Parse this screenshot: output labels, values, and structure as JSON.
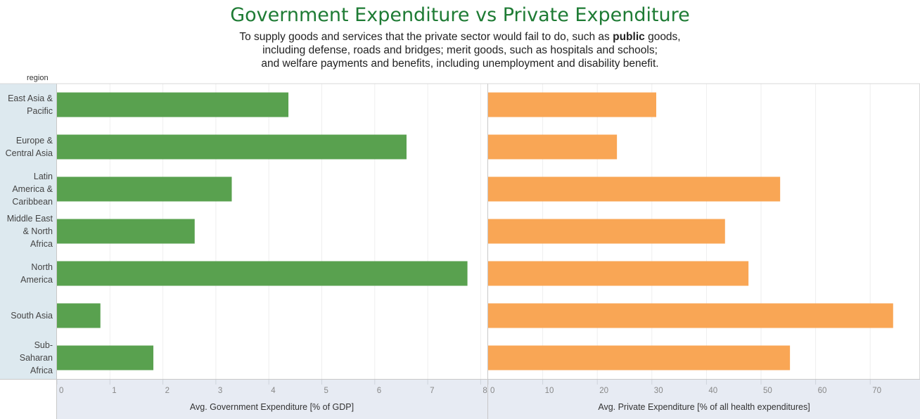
{
  "title": "Government Expenditure vs Private Expenditure",
  "subtitle": {
    "line1_before": "To supply goods and services that the private sector would fail to do, such as ",
    "line1_bold": "public",
    "line1_after": " goods,",
    "line2": "including defense, roads and bridges; merit goods, such as hospitals and schools;",
    "line3": "and welfare payments and benefits, including unemployment and disability benefit."
  },
  "region_header": "region",
  "colors": {
    "government": "#59a14f",
    "private": "#f9a655",
    "title": "#1e7b34"
  },
  "chart_data": [
    {
      "type": "bar",
      "orientation": "horizontal",
      "categories": [
        "East Asia & Pacific",
        "Europe & Central Asia",
        "Latin America & Caribbean",
        "Middle East & North Africa",
        "North America",
        "South Asia",
        "Sub-Saharan Africa"
      ],
      "values": [
        4.37,
        6.6,
        3.3,
        2.6,
        7.75,
        0.82,
        1.82
      ],
      "xlabel": "Avg. Government Expenditure [% of GDP]",
      "xlim": [
        0,
        8
      ],
      "ticks": [
        "0",
        "1",
        "2",
        "3",
        "4",
        "5",
        "6",
        "7",
        "8"
      ],
      "grid": true
    },
    {
      "type": "bar",
      "orientation": "horizontal",
      "categories": [
        "East Asia & Pacific",
        "Europe & Central Asia",
        "Latin America & Caribbean",
        "Middle East & North Africa",
        "North America",
        "South Asia",
        "Sub-Saharan Africa"
      ],
      "values": [
        30.8,
        23.6,
        53.5,
        43.4,
        47.7,
        74.2,
        55.3
      ],
      "xlabel": "Avg. Private Expenditure [% of all health expenditures]",
      "xlim": [
        0,
        77.5
      ],
      "ticks": [
        "0",
        "10",
        "20",
        "30",
        "40",
        "50",
        "60",
        "70"
      ],
      "grid": true
    }
  ],
  "row_labels": [
    [
      "East Asia &",
      "Pacific"
    ],
    [
      "Europe &",
      "Central Asia"
    ],
    [
      "Latin",
      "America &",
      "Caribbean"
    ],
    [
      "Middle East",
      "& North",
      "Africa"
    ],
    [
      "North",
      "America"
    ],
    [
      "South Asia"
    ],
    [
      "Sub-",
      "Saharan",
      "Africa"
    ]
  ]
}
